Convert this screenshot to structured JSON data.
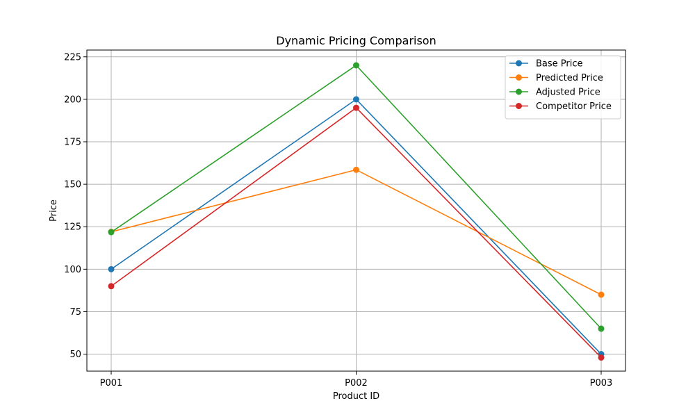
{
  "chart_data": {
    "type": "line",
    "title": "Dynamic Pricing Comparison",
    "xlabel": "Product ID",
    "ylabel": "Price",
    "categories": [
      "P001",
      "P002",
      "P003"
    ],
    "ylim": [
      40,
      229
    ],
    "yticks": [
      50,
      75,
      100,
      125,
      150,
      175,
      200,
      225
    ],
    "grid": true,
    "legend_position": "top-right",
    "series": [
      {
        "name": "Base Price",
        "color": "#1f77b4",
        "values": [
          100,
          200,
          50
        ]
      },
      {
        "name": "Predicted Price",
        "color": "#ff7f0e",
        "values": [
          122,
          158.5,
          85
        ]
      },
      {
        "name": "Adjusted Price",
        "color": "#2ca02c",
        "values": [
          121.8,
          220,
          65
        ]
      },
      {
        "name": "Competitor Price",
        "color": "#d62728",
        "values": [
          90,
          195,
          48
        ]
      }
    ]
  }
}
